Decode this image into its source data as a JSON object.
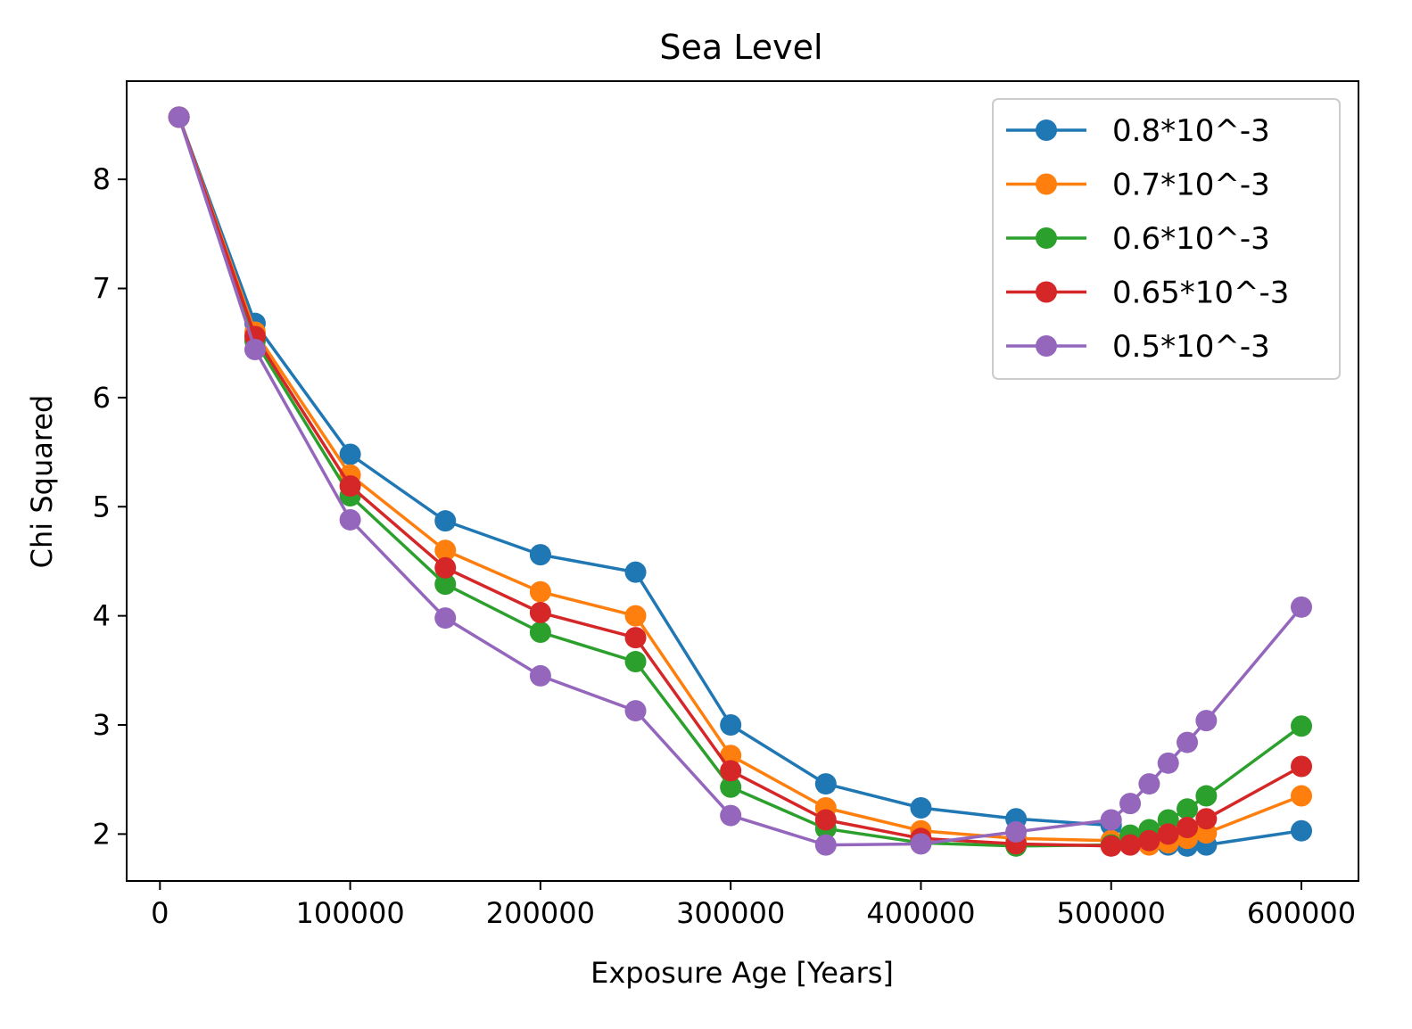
{
  "chart_data": {
    "type": "line",
    "title": "Sea Level",
    "xlabel": "Exposure Age [Years]",
    "ylabel": "Chi Squared",
    "xlim": [
      -17500,
      630000
    ],
    "ylim": [
      1.57,
      8.9
    ],
    "xticks": [
      0,
      100000,
      200000,
      300000,
      400000,
      500000,
      600000
    ],
    "xtick_labels": [
      "0",
      "100000",
      "200000",
      "300000",
      "400000",
      "500000",
      "600000"
    ],
    "yticks": [
      2,
      3,
      4,
      5,
      6,
      7,
      8
    ],
    "ytick_labels": [
      "2",
      "3",
      "4",
      "5",
      "6",
      "7",
      "8"
    ],
    "grid": false,
    "legend_position": "top-right",
    "x": [
      10000,
      50000,
      100000,
      150000,
      200000,
      250000,
      300000,
      350000,
      400000,
      450000,
      500000,
      510000,
      520000,
      530000,
      540000,
      550000,
      600000
    ],
    "series": [
      {
        "name": "0.8*10^-3",
        "color": "#1f77b4",
        "values": [
          8.57,
          6.68,
          5.48,
          4.87,
          4.56,
          4.4,
          3.0,
          2.46,
          2.24,
          2.14,
          2.08,
          1.97,
          1.92,
          1.9,
          1.89,
          1.9,
          2.03
        ]
      },
      {
        "name": "0.7*10^-3",
        "color": "#ff7f0e",
        "values": [
          8.57,
          6.6,
          5.29,
          4.6,
          4.22,
          4.0,
          2.72,
          2.24,
          2.03,
          1.96,
          1.94,
          1.91,
          1.9,
          1.92,
          1.96,
          2.01,
          2.35
        ]
      },
      {
        "name": "0.6*10^-3",
        "color": "#2ca02c",
        "values": [
          8.57,
          6.52,
          5.1,
          4.29,
          3.85,
          3.58,
          2.43,
          2.05,
          1.92,
          1.89,
          1.9,
          1.99,
          2.04,
          2.13,
          2.23,
          2.35,
          2.99
        ]
      },
      {
        "name": "0.65*10^-3",
        "color": "#d62728",
        "values": [
          8.57,
          6.56,
          5.19,
          4.44,
          4.03,
          3.8,
          2.58,
          2.13,
          1.96,
          1.91,
          1.89,
          1.9,
          1.94,
          2.0,
          2.06,
          2.14,
          2.62
        ]
      },
      {
        "name": "0.5*10^-3",
        "color": "#9467bd",
        "values": [
          8.57,
          6.44,
          4.88,
          3.98,
          3.45,
          3.13,
          2.17,
          1.9,
          1.91,
          2.02,
          2.13,
          2.28,
          2.46,
          2.65,
          2.84,
          3.04,
          4.08
        ]
      }
    ]
  }
}
